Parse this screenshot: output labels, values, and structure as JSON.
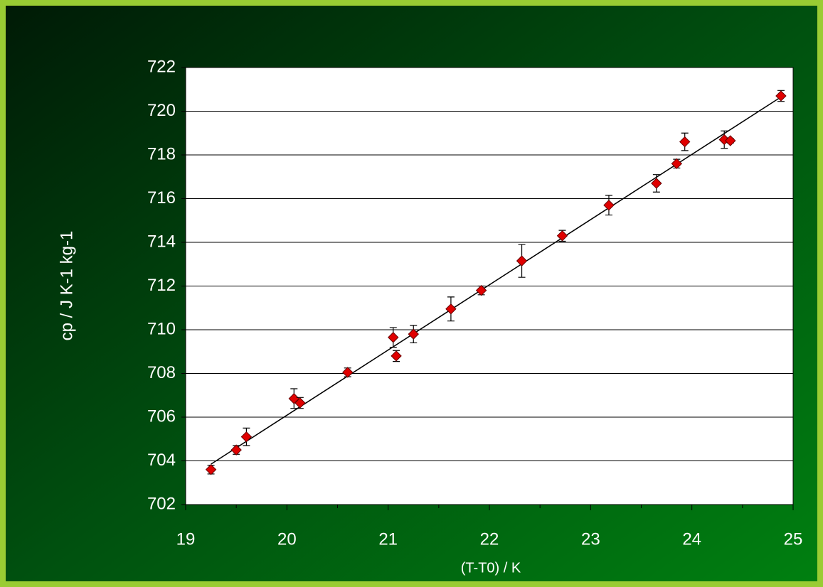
{
  "chart_data": {
    "type": "scatter",
    "xlabel": "(T-T0) / K",
    "ylabel": "cp / J K-1 kg-1",
    "xlim": [
      19,
      25
    ],
    "xticks": [
      19,
      20,
      21,
      22,
      23,
      24,
      25
    ],
    "xminorticks": [
      19.5,
      20.5,
      21.5,
      22.5,
      23.5,
      24.5
    ],
    "ylim": [
      702,
      722
    ],
    "yticks": [
      702,
      704,
      706,
      708,
      710,
      712,
      714,
      716,
      718,
      720,
      722
    ],
    "grid": true,
    "series": [
      {
        "color": "#e00000",
        "x": [
          19.25,
          19.5,
          19.6,
          20.07,
          20.13,
          20.6,
          21.05,
          21.08,
          21.25,
          21.62,
          21.92,
          22.32,
          22.72,
          23.18,
          23.65,
          23.85,
          23.93,
          24.32,
          24.38,
          24.88
        ],
        "values": [
          703.6,
          704.5,
          705.1,
          706.85,
          706.65,
          708.05,
          709.65,
          708.8,
          709.8,
          710.95,
          711.8,
          713.15,
          714.3,
          715.7,
          716.7,
          717.6,
          718.6,
          718.7,
          718.65,
          720.7
        ],
        "errors": [
          0.2,
          0.2,
          0.4,
          0.45,
          0.25,
          0.2,
          0.45,
          0.25,
          0.4,
          0.55,
          0.2,
          0.75,
          0.25,
          0.45,
          0.4,
          0.2,
          0.4,
          0.4,
          0.1,
          0.25
        ]
      }
    ],
    "fit": {
      "color": "#000000",
      "x": [
        19.25,
        24.88
      ],
      "values": [
        703.85,
        720.65
      ]
    }
  }
}
